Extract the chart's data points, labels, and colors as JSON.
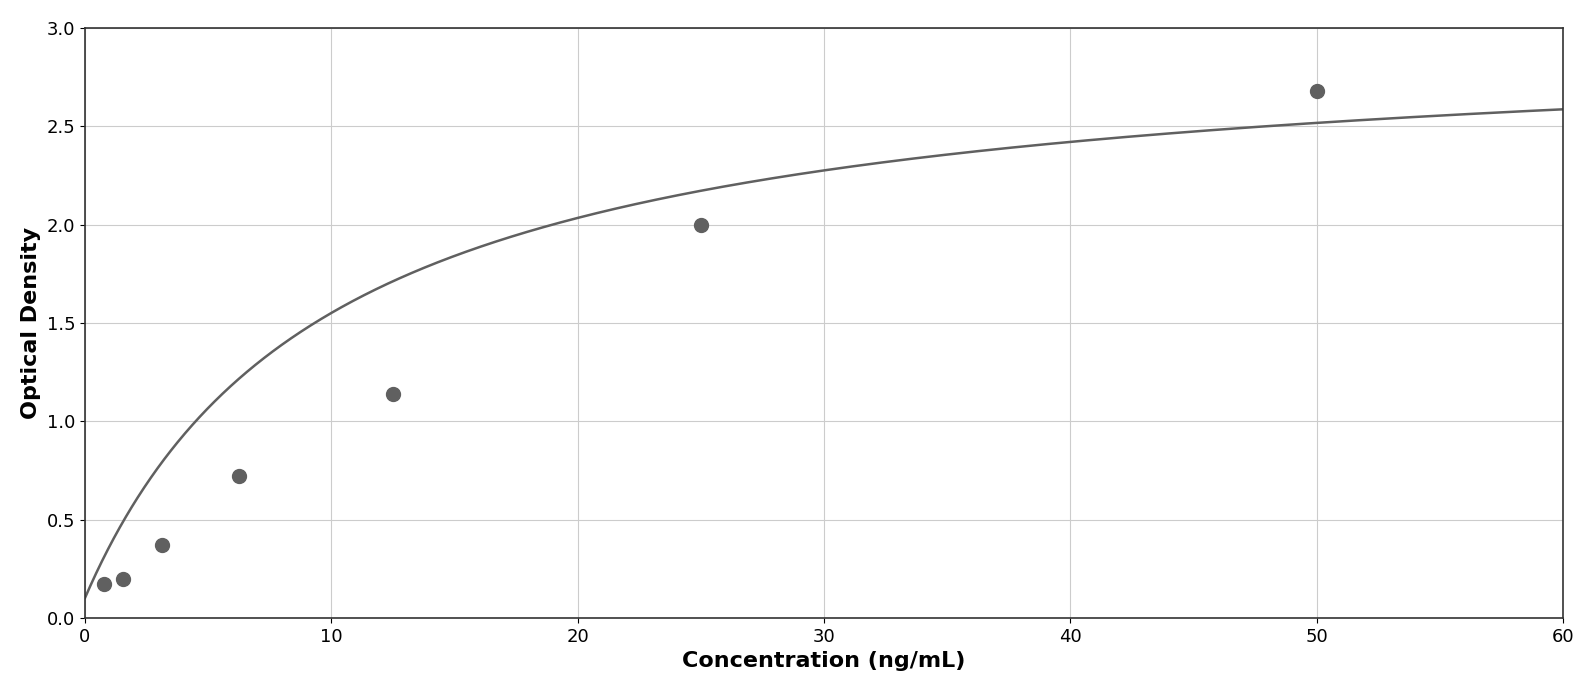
{
  "x_data": [
    0.78,
    1.56,
    3.13,
    6.25,
    12.5,
    25.0,
    50.0
  ],
  "y_data": [
    0.17,
    0.2,
    0.37,
    0.72,
    1.14,
    2.0,
    2.68
  ],
  "xlabel": "Concentration (ng/mL)",
  "ylabel": "Optical Density",
  "xlim": [
    0,
    60
  ],
  "ylim": [
    0,
    3.0
  ],
  "xticks": [
    0,
    10,
    20,
    30,
    40,
    50,
    60
  ],
  "yticks": [
    0,
    0.5,
    1.0,
    1.5,
    2.0,
    2.5,
    3.0
  ],
  "marker_color": "#606060",
  "line_color": "#606060",
  "marker_size": 10,
  "line_width": 1.8,
  "background_color": "#ffffff",
  "grid_color": "#cccccc",
  "xlabel_fontsize": 16,
  "ylabel_fontsize": 16,
  "tick_fontsize": 13,
  "figure_border_color": "#333333"
}
